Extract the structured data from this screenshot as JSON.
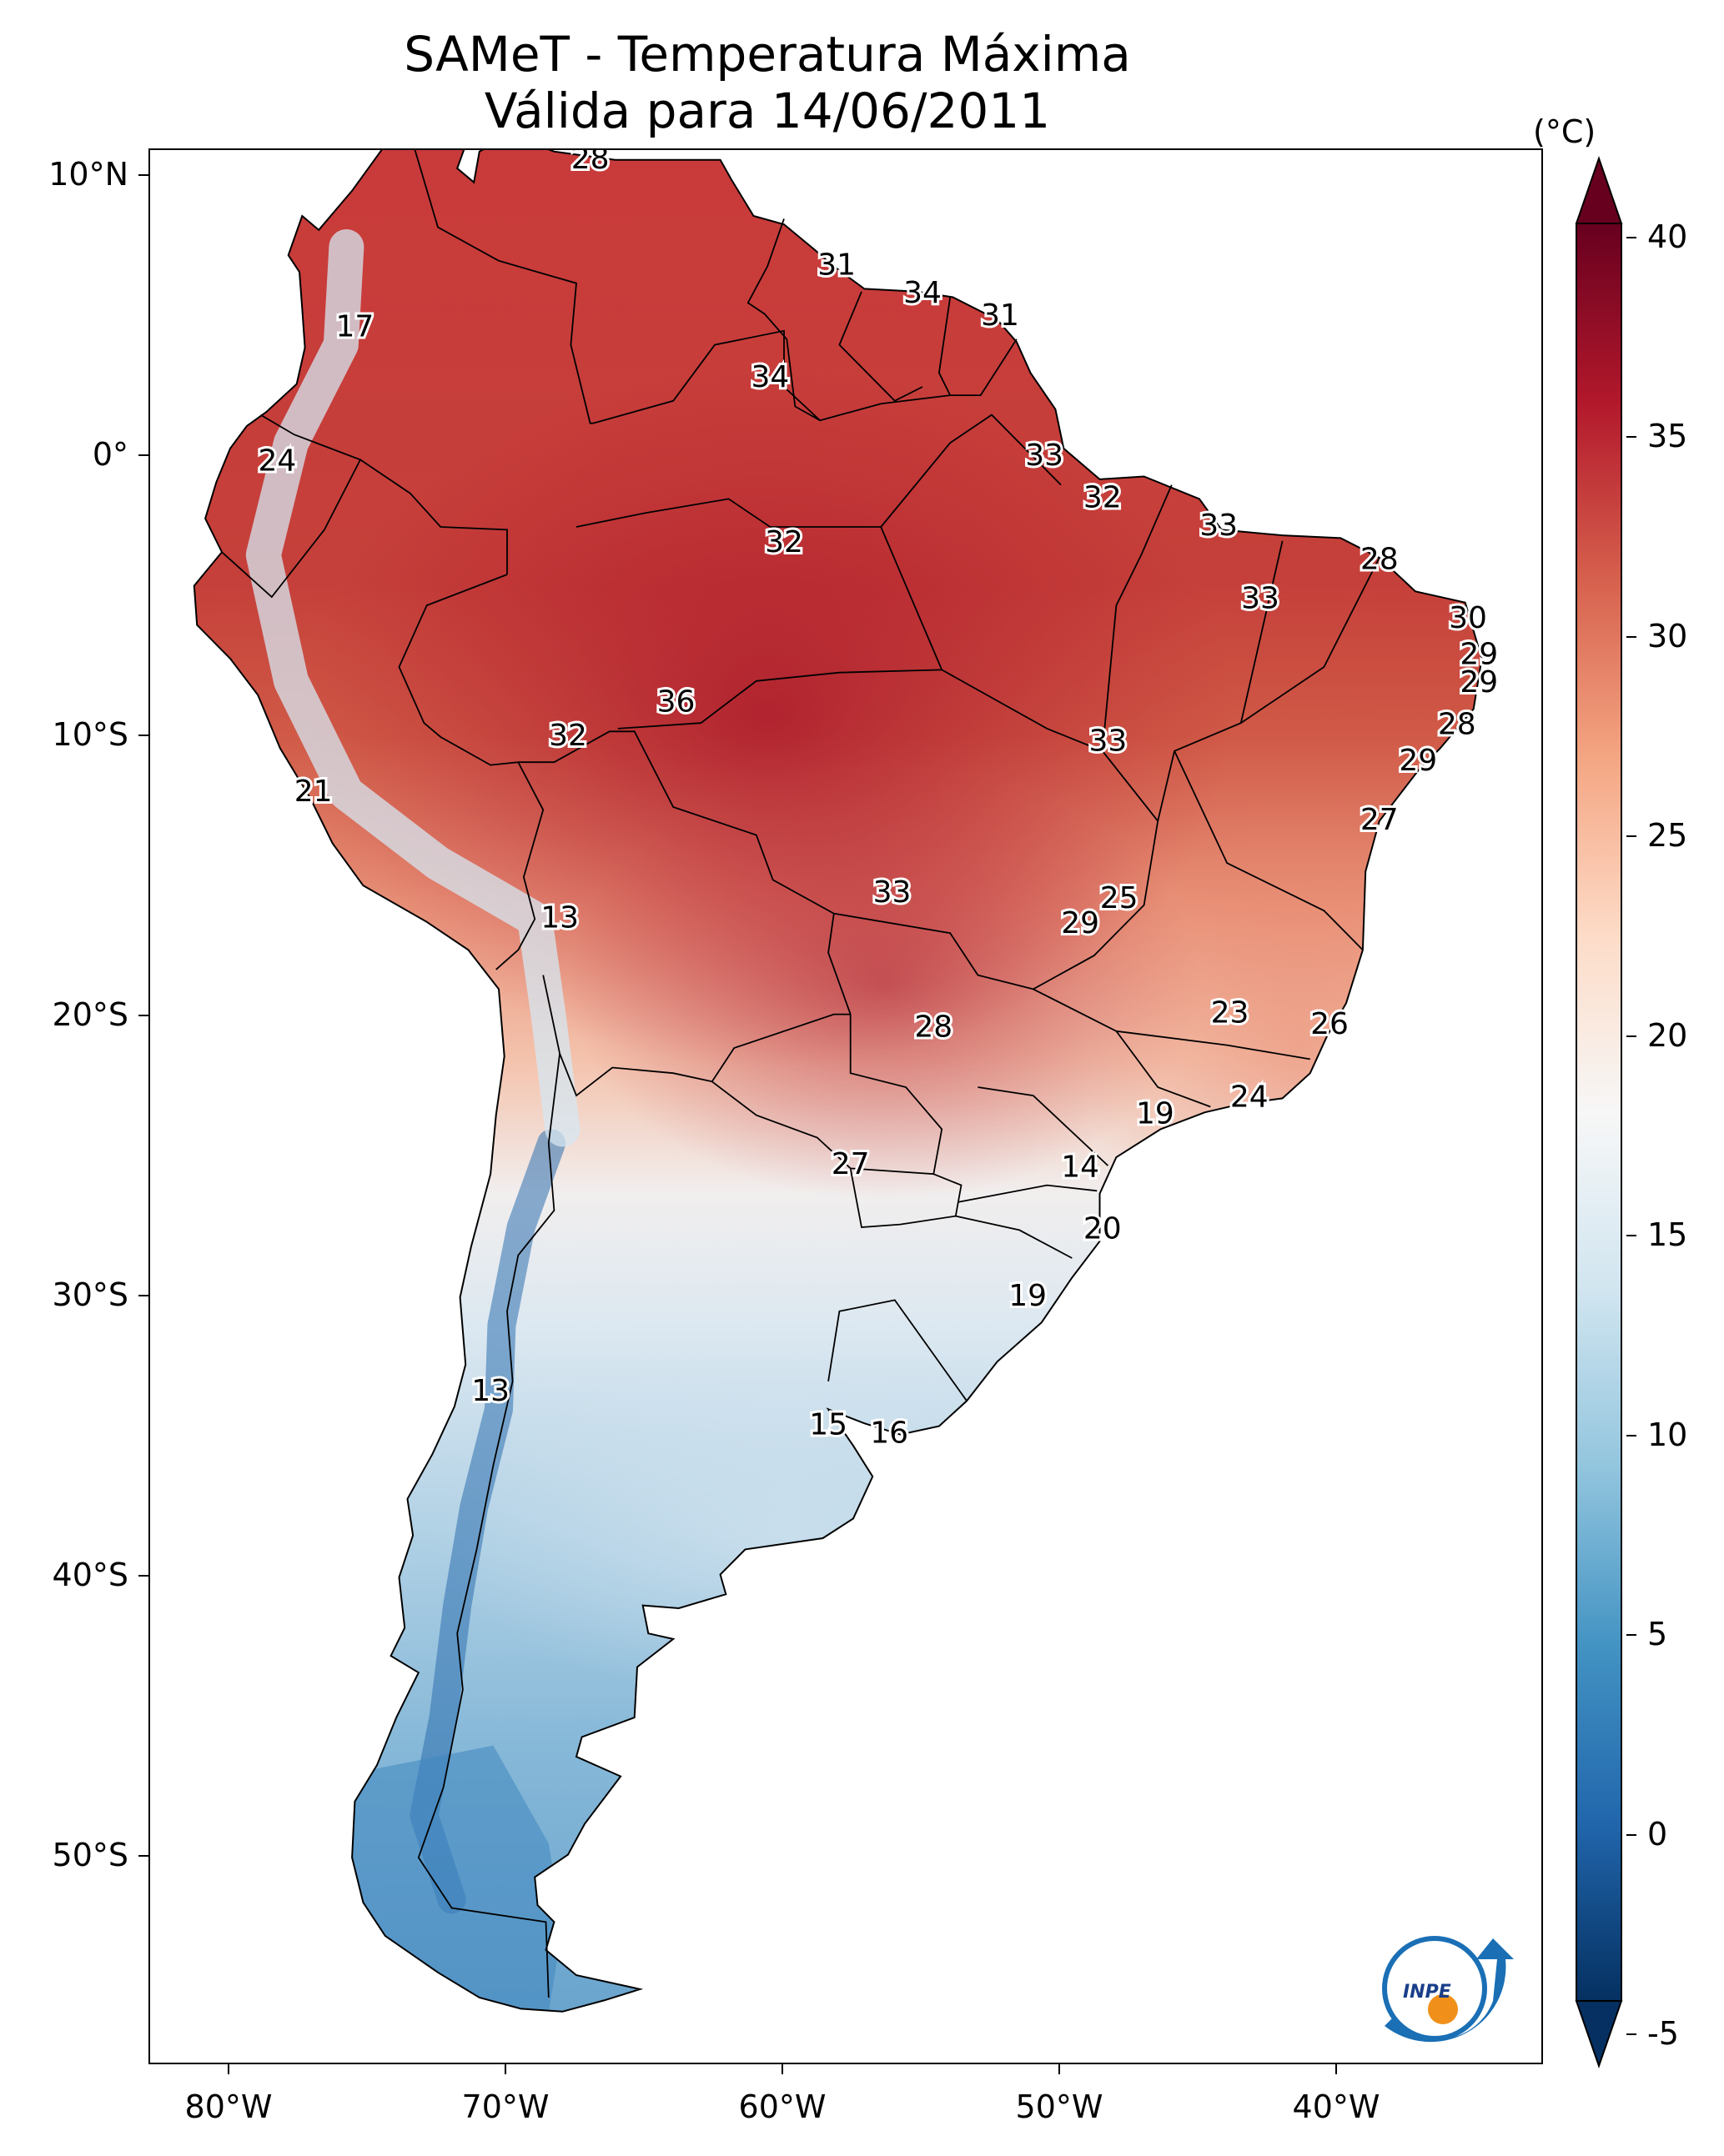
{
  "title": {
    "line1": "SAMeT - Temperatura Máxima",
    "line2": "Válida para 14/06/2011"
  },
  "map": {
    "lat_labels": [
      "10°N",
      "0°",
      "10°S",
      "20°S",
      "30°S",
      "40°S",
      "50°S"
    ],
    "lon_labels": [
      "80°W",
      "70°W",
      "60°W",
      "50°W",
      "40°W"
    ],
    "station_values": [
      {
        "value": "28",
        "lon": -67.0,
        "lat": 10.6
      },
      {
        "value": "17",
        "lon": -75.5,
        "lat": 4.6
      },
      {
        "value": "31",
        "lon": -58.1,
        "lat": 6.8
      },
      {
        "value": "34",
        "lon": -55.0,
        "lat": 5.8
      },
      {
        "value": "31",
        "lon": -52.2,
        "lat": 5.0
      },
      {
        "value": "34",
        "lon": -60.5,
        "lat": 2.8
      },
      {
        "value": "24",
        "lon": -78.3,
        "lat": -0.2
      },
      {
        "value": "33",
        "lon": -50.6,
        "lat": 0.0
      },
      {
        "value": "32",
        "lon": -48.5,
        "lat": -1.5
      },
      {
        "value": "33",
        "lon": -44.3,
        "lat": -2.5
      },
      {
        "value": "32",
        "lon": -60.0,
        "lat": -3.1
      },
      {
        "value": "28",
        "lon": -38.5,
        "lat": -3.7
      },
      {
        "value": "33",
        "lon": -42.8,
        "lat": -5.1
      },
      {
        "value": "30",
        "lon": -35.3,
        "lat": -5.8
      },
      {
        "value": "29",
        "lon": -34.9,
        "lat": -7.1
      },
      {
        "value": "29",
        "lon": -34.9,
        "lat": -8.1
      },
      {
        "value": "36",
        "lon": -63.9,
        "lat": -8.8
      },
      {
        "value": "28",
        "lon": -35.7,
        "lat": -9.6
      },
      {
        "value": "32",
        "lon": -67.8,
        "lat": -10.0
      },
      {
        "value": "33",
        "lon": -48.3,
        "lat": -10.2
      },
      {
        "value": "29",
        "lon": -37.1,
        "lat": -10.9
      },
      {
        "value": "21",
        "lon": -77.0,
        "lat": -12.0
      },
      {
        "value": "27",
        "lon": -38.5,
        "lat": -13.0
      },
      {
        "value": "33",
        "lon": -56.1,
        "lat": -15.6
      },
      {
        "value": "25",
        "lon": -47.9,
        "lat": -15.8
      },
      {
        "value": "29",
        "lon": -49.3,
        "lat": -16.7
      },
      {
        "value": "13",
        "lon": -68.1,
        "lat": -16.5
      },
      {
        "value": "23",
        "lon": -43.9,
        "lat": -19.9
      },
      {
        "value": "26",
        "lon": -40.3,
        "lat": -20.3
      },
      {
        "value": "28",
        "lon": -54.6,
        "lat": -20.4
      },
      {
        "value": "24",
        "lon": -43.2,
        "lat": -22.9
      },
      {
        "value": "19",
        "lon": -46.6,
        "lat": -23.5
      },
      {
        "value": "27",
        "lon": -57.6,
        "lat": -25.3
      },
      {
        "value": "14",
        "lon": -49.3,
        "lat": -25.4
      },
      {
        "value": "20",
        "lon": -48.5,
        "lat": -27.6
      },
      {
        "value": "19",
        "lon": -51.2,
        "lat": -30.0
      },
      {
        "value": "13",
        "lon": -70.6,
        "lat": -33.4
      },
      {
        "value": "15",
        "lon": -58.4,
        "lat": -34.6
      },
      {
        "value": "16",
        "lon": -56.2,
        "lat": -34.9
      }
    ]
  },
  "colorbar": {
    "unit": "(°C)",
    "ticks": [
      "40",
      "35",
      "30",
      "25",
      "20",
      "15",
      "10",
      "5",
      "0",
      "-5"
    ],
    "colors": [
      "#053061",
      "#2166ac",
      "#4393c3",
      "#92c5de",
      "#d1e5f0",
      "#f7f7f7",
      "#fddbc7",
      "#f4a582",
      "#d6604d",
      "#b2182b",
      "#67001f"
    ]
  },
  "logo": {
    "text": "INPE",
    "colors": [
      "#1a6fb5",
      "#f0901a"
    ]
  }
}
